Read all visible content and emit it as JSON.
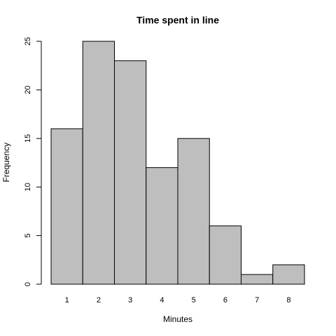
{
  "chart_data": {
    "type": "histogram",
    "title": "Time spent in line",
    "x_label": "Minutes",
    "y_label": "Frequency",
    "bins": [
      0.5,
      1.5,
      2.5,
      3.5,
      4.5,
      5.5,
      6.5,
      7.5,
      8.5
    ],
    "values": [
      16,
      25,
      23,
      12,
      15,
      6,
      1,
      2
    ],
    "color": "#bebebe",
    "xlim": [
      0.5,
      8.5
    ],
    "xticks": [
      1,
      2,
      3,
      4,
      5,
      6,
      7,
      8
    ],
    "ylim": [
      0,
      25
    ],
    "yticks": [
      0,
      5,
      10,
      15,
      20,
      25
    ]
  }
}
